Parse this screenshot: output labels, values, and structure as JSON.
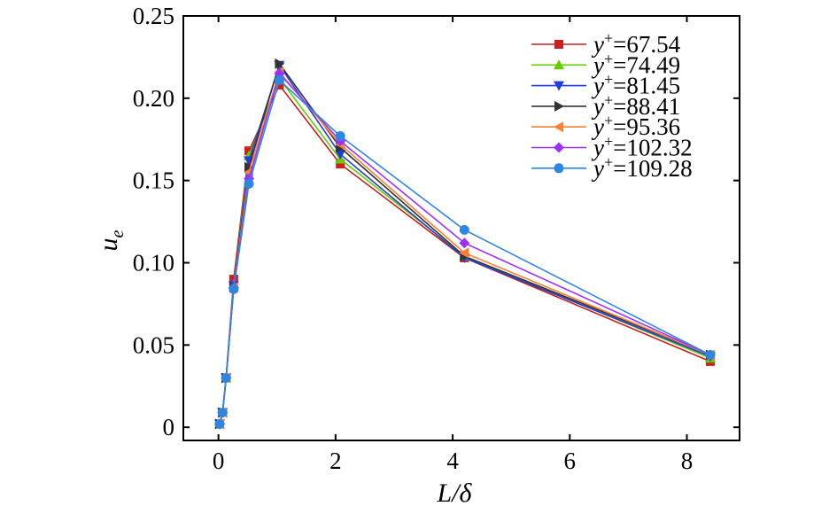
{
  "chart_data": {
    "type": "line",
    "title": "",
    "xlabel": "L/δ",
    "ylabel": "u",
    "ylabel_sub": "e",
    "xlim": [
      -0.6,
      8.9
    ],
    "ylim": [
      -0.008,
      0.25
    ],
    "x_ticks": [
      0,
      2,
      4,
      6,
      8
    ],
    "x_tick_labels": [
      "0",
      "2",
      "4",
      "6",
      "8"
    ],
    "y_ticks": [
      0,
      0.05,
      0.1,
      0.15,
      0.2,
      0.25
    ],
    "y_tick_labels": [
      "0",
      "0.05",
      "0.10",
      "0.15",
      "0.20",
      "0.25"
    ],
    "grid": false,
    "legend_position": "top-right",
    "legend_prefix": "y",
    "legend_sup": "+",
    "x": [
      0.02,
      0.07,
      0.13,
      0.26,
      0.52,
      1.04,
      2.08,
      4.2,
      8.4
    ],
    "series": [
      {
        "name": "=67.54",
        "color": "#cc1f1f",
        "marker": "square",
        "values": [
          0.002,
          0.009,
          0.03,
          0.09,
          0.168,
          0.208,
          0.16,
          0.103,
          0.04
        ]
      },
      {
        "name": "=74.49",
        "color": "#66cc00",
        "marker": "triangle-up",
        "values": [
          0.002,
          0.009,
          0.03,
          0.087,
          0.165,
          0.212,
          0.163,
          0.104,
          0.042
        ]
      },
      {
        "name": "=81.45",
        "color": "#1f3fdd",
        "marker": "triangle-down",
        "values": [
          0.002,
          0.009,
          0.03,
          0.086,
          0.162,
          0.22,
          0.166,
          0.103,
          0.043
        ]
      },
      {
        "name": "=88.41",
        "color": "#333333",
        "marker": "triangle-right",
        "values": [
          0.002,
          0.009,
          0.03,
          0.085,
          0.158,
          0.221,
          0.17,
          0.104,
          0.044
        ]
      },
      {
        "name": "=95.36",
        "color": "#ff7f33",
        "marker": "triangle-left",
        "values": [
          0.002,
          0.009,
          0.03,
          0.085,
          0.155,
          0.216,
          0.172,
          0.106,
          0.044
        ]
      },
      {
        "name": "=102.32",
        "color": "#9b30ff",
        "marker": "diamond",
        "values": [
          0.002,
          0.009,
          0.03,
          0.085,
          0.151,
          0.215,
          0.174,
          0.112,
          0.044
        ]
      },
      {
        "name": "=109.28",
        "color": "#2f86e0",
        "marker": "circle",
        "values": [
          0.002,
          0.009,
          0.03,
          0.084,
          0.148,
          0.211,
          0.177,
          0.12,
          0.044
        ]
      }
    ]
  }
}
